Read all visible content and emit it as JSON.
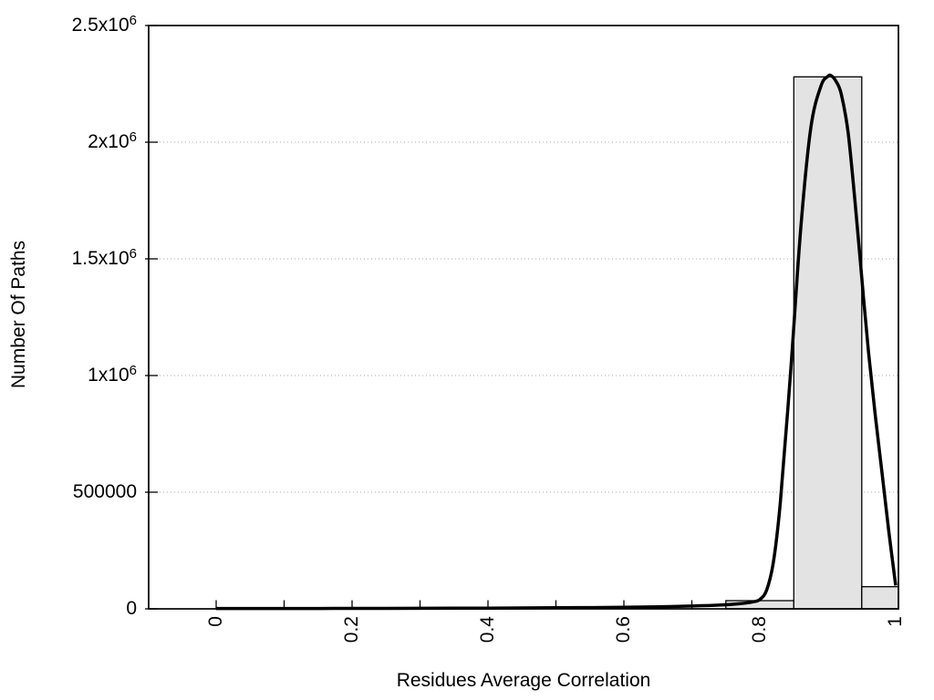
{
  "style": {
    "background": "#ffffff",
    "axis_color": "#000000",
    "border_width": 1.7,
    "tick_width": 1.3,
    "grid_color": "#aaaaaa",
    "bar_fill": "#e3e3e3",
    "bar_stroke": "#000000",
    "bar_stroke_width": 1.3,
    "curve_color": "#000000",
    "curve_width": 3.5
  },
  "chart_data": {
    "type": "bar",
    "subtype": "histogram with smooth distribution curve overlay",
    "title": "",
    "xlabel": "Residues Average Correlation",
    "ylabel": "Number Of Paths",
    "xlim": [
      -0.1,
      1.005
    ],
    "ylim": [
      0,
      2500000
    ],
    "grid": "horizontal dotted lines at labeled y ticks",
    "legend": "none",
    "xaxis": {
      "label_rotation_deg": -90,
      "ticks": [
        {
          "label": "0",
          "value": 0
        },
        {
          "label": "0.2",
          "value": 0.2
        },
        {
          "label": "0.4",
          "value": 0.4
        },
        {
          "label": "0.6",
          "value": 0.6
        },
        {
          "label": "0.8",
          "value": 0.8
        },
        {
          "label": "1",
          "value": 1
        }
      ],
      "minor_tick_values": [
        0,
        0.1,
        0.2,
        0.3,
        0.4,
        0.5,
        0.6,
        0.7,
        0.8,
        0.9,
        1.0
      ]
    },
    "yaxis": {
      "ticks": [
        {
          "base": "0",
          "exp": "",
          "value": 0
        },
        {
          "base": "500000",
          "exp": "",
          "value": 500000
        },
        {
          "base": "1x10",
          "exp": "6",
          "value": 1000000
        },
        {
          "base": "1.5x10",
          "exp": "6",
          "value": 1500000
        },
        {
          "base": "2x10",
          "exp": "6",
          "value": 2000000
        },
        {
          "base": "2.5x10",
          "exp": "6",
          "value": 2500000
        }
      ]
    },
    "bars": [
      {
        "x_start": 0.75,
        "x_end": 0.85,
        "count": 35000
      },
      {
        "x_start": 0.85,
        "x_end": 0.95,
        "count": 2280000
      },
      {
        "x_start": 0.95,
        "x_end": 1.0,
        "count": 95000
      }
    ],
    "curve_points": [
      [
        0.0,
        1500
      ],
      [
        0.05,
        1500
      ],
      [
        0.1,
        1600
      ],
      [
        0.15,
        1700
      ],
      [
        0.2,
        1900
      ],
      [
        0.25,
        2100
      ],
      [
        0.3,
        2400
      ],
      [
        0.35,
        2800
      ],
      [
        0.4,
        3300
      ],
      [
        0.45,
        3900
      ],
      [
        0.5,
        4600
      ],
      [
        0.55,
        5600
      ],
      [
        0.6,
        7000
      ],
      [
        0.65,
        9000
      ],
      [
        0.7,
        12000
      ],
      [
        0.74,
        16000
      ],
      [
        0.77,
        22000
      ],
      [
        0.79,
        30000
      ],
      [
        0.8,
        40000
      ],
      [
        0.81,
        80000
      ],
      [
        0.82,
        200000
      ],
      [
        0.83,
        450000
      ],
      [
        0.845,
        1000000
      ],
      [
        0.86,
        1620000
      ],
      [
        0.875,
        2060000
      ],
      [
        0.89,
        2240000
      ],
      [
        0.9,
        2282000
      ],
      [
        0.905,
        2285000
      ],
      [
        0.912,
        2262000
      ],
      [
        0.92,
        2205000
      ],
      [
        0.93,
        2040000
      ],
      [
        0.94,
        1750000
      ],
      [
        0.95,
        1420000
      ],
      [
        0.96,
        1100000
      ],
      [
        0.97,
        830000
      ],
      [
        0.98,
        580000
      ],
      [
        0.99,
        330000
      ],
      [
        1.0,
        100000
      ]
    ]
  }
}
